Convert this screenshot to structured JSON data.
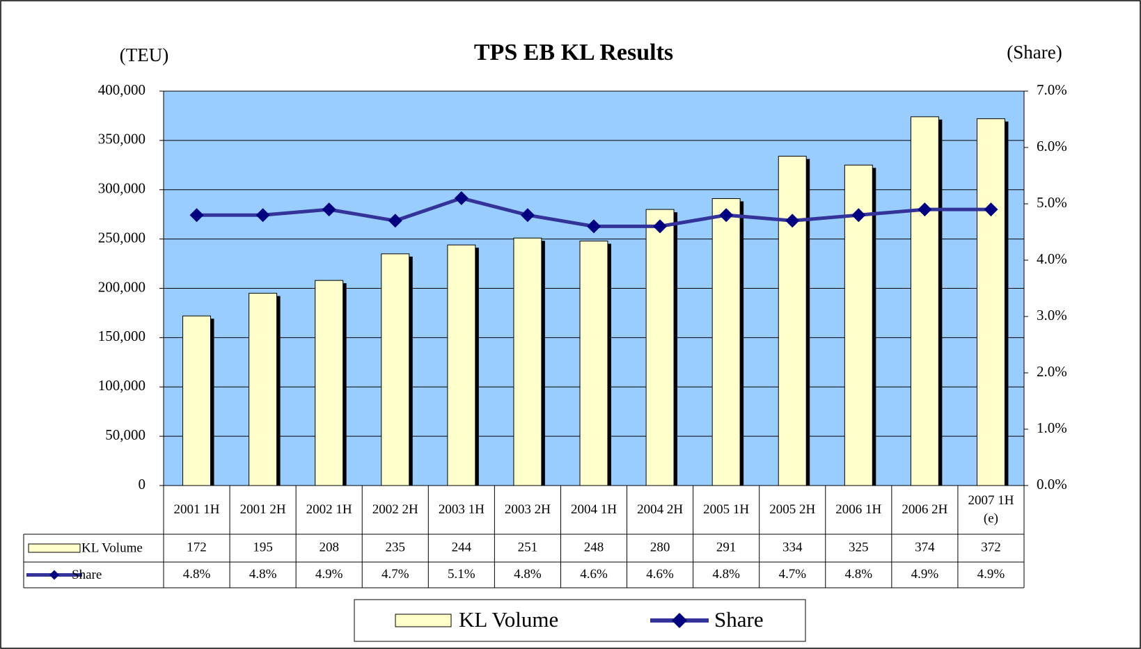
{
  "chart_data": {
    "type": "bar",
    "title": "TPS EB KL Results",
    "y_label": "(TEU)",
    "y2_label": "(Share)",
    "categories": [
      "2001 1H",
      "2001 2H",
      "2002 1H",
      "2002 2H",
      "2003 1H",
      "2003 2H",
      "2004 1H",
      "2004 2H",
      "2005 1H",
      "2005 2H",
      "2006 1H",
      "2006 2H",
      "2007 1H (e)"
    ],
    "series": [
      {
        "name": "KL Volume",
        "type": "bar",
        "color": "#ffffcc",
        "values": [
          172000,
          195000,
          208000,
          235000,
          244000,
          251000,
          248000,
          280000,
          291000,
          334000,
          325000,
          374000,
          372000
        ],
        "value_labels": [
          "172",
          "195",
          "208",
          "235",
          "244",
          "251",
          "248",
          "280",
          "291",
          "334",
          "325",
          "374",
          "372"
        ]
      },
      {
        "name": "Share",
        "type": "line",
        "axis": "y2",
        "color": "#333399",
        "values": [
          4.8,
          4.8,
          4.9,
          4.7,
          5.1,
          4.8,
          4.6,
          4.6,
          4.8,
          4.7,
          4.8,
          4.9,
          4.9
        ],
        "value_labels": [
          "4.8%",
          "4.8%",
          "4.9%",
          "4.7%",
          "5.1%",
          "4.8%",
          "4.6%",
          "4.6%",
          "4.8%",
          "4.7%",
          "4.8%",
          "4.9%",
          "4.9%"
        ]
      }
    ],
    "ylim": [
      0,
      400000
    ],
    "yticks": [
      {
        "value": 0,
        "label": "0"
      },
      {
        "value": 50000,
        "label": "50,000"
      },
      {
        "value": 100000,
        "label": "100,000"
      },
      {
        "value": 150000,
        "label": "150,000"
      },
      {
        "value": 200000,
        "label": "200,000"
      },
      {
        "value": 250000,
        "label": "250,000"
      },
      {
        "value": 300000,
        "label": "300,000"
      },
      {
        "value": 350000,
        "label": "350,000"
      },
      {
        "value": 400000,
        "label": "400,000"
      }
    ],
    "y2lim": [
      0,
      7
    ],
    "y2ticks": [
      {
        "value": 0,
        "label": "0.0%"
      },
      {
        "value": 1,
        "label": "1.0%"
      },
      {
        "value": 2,
        "label": "2.0%"
      },
      {
        "value": 3,
        "label": "3.0%"
      },
      {
        "value": 4,
        "label": "4.0%"
      },
      {
        "value": 5,
        "label": "5.0%"
      },
      {
        "value": 6,
        "label": "6.0%"
      },
      {
        "value": 7,
        "label": "7.0%"
      }
    ],
    "grid": true,
    "legend": "bottom"
  }
}
